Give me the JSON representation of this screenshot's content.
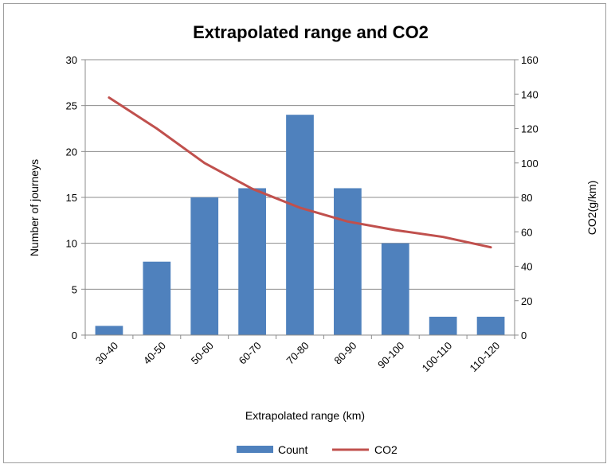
{
  "chart_data": {
    "type": "bar",
    "title": "Extrapolated range and CO2",
    "xlabel": "Extrapolated range (km)",
    "ylabel": "Number of journeys",
    "y2label": "CO2(g/km)",
    "categories": [
      "30-40",
      "40-50",
      "50-60",
      "60-70",
      "70-80",
      "80-90",
      "90-100",
      "100-110",
      "110-120"
    ],
    "series": [
      {
        "name": "Count",
        "type": "bar",
        "axis": "left",
        "color": "#4f81bd",
        "values": [
          1,
          8,
          15,
          16,
          24,
          16,
          10,
          2,
          2
        ]
      },
      {
        "name": "CO2",
        "type": "line",
        "axis": "right",
        "color": "#c0504d",
        "values": [
          138,
          120,
          100,
          85,
          74,
          66,
          61,
          57,
          51
        ]
      }
    ],
    "ylim": [
      0,
      30
    ],
    "y2lim": [
      0,
      160
    ],
    "yticks": [
      "0",
      "5",
      "10",
      "15",
      "20",
      "25",
      "30"
    ],
    "y2ticks": [
      "0",
      "20",
      "40",
      "60",
      "80",
      "100",
      "120",
      "140",
      "160"
    ],
    "grid": true,
    "legend_position": "bottom"
  }
}
